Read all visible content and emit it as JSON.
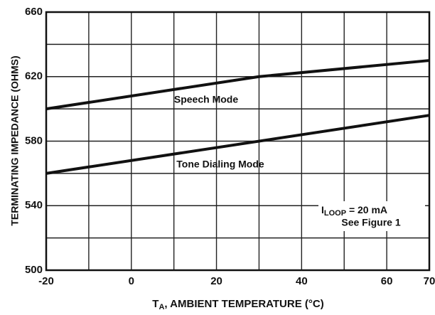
{
  "chart_data": {
    "type": "line",
    "y_label": "TERMINATING IMPEDANCE (OHMS)",
    "x_label": {
      "main": "T",
      "sub": "A",
      "rest": ", AMBIENT TEMPERATURE (°C)"
    },
    "xlim": [
      -20,
      70
    ],
    "xticks": [
      -20,
      0,
      20,
      40,
      60,
      70
    ],
    "xminor": [
      -10,
      10,
      30,
      50
    ],
    "ylim": [
      500,
      660
    ],
    "yticks": [
      500,
      540,
      580,
      620,
      660
    ],
    "yminor": [
      520,
      560,
      600,
      640
    ],
    "grid": true,
    "series": [
      {
        "name": "Speech Mode",
        "color": "#111111",
        "x": [
          -20,
          30,
          70
        ],
        "values": [
          600,
          620,
          630
        ]
      },
      {
        "name": "Tone Dialing Mode",
        "color": "#111111",
        "x": [
          -20,
          70
        ],
        "values": [
          560,
          596
        ]
      }
    ],
    "annotation": {
      "main": "I",
      "sub": "LOOP",
      "rest": " = 20 mA",
      "line2": "See Figure 1"
    }
  }
}
